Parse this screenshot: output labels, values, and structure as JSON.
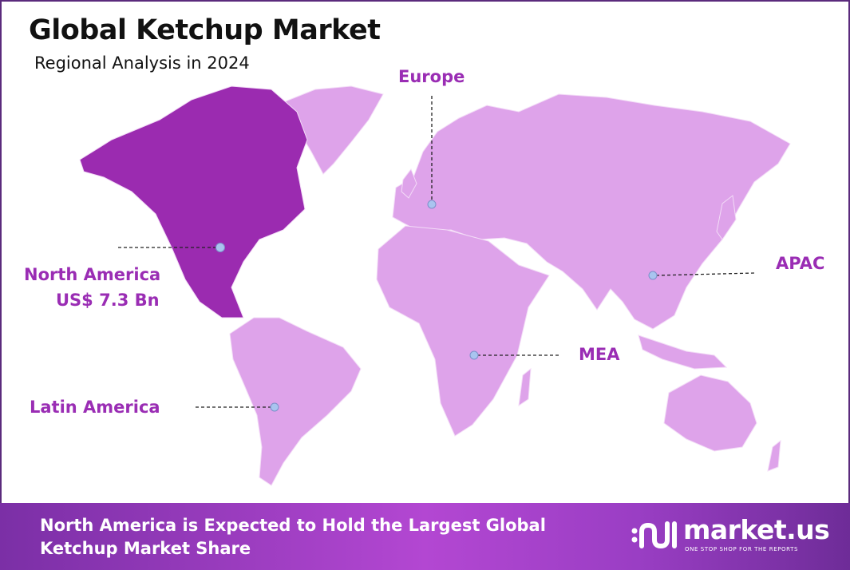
{
  "header": {
    "title": "Global Ketchup Market",
    "subtitle": "Regional Analysis in 2024"
  },
  "map": {
    "highlight_color": "#9b2bb0",
    "base_color": "#dea3ea",
    "marker_color": "#a9c4ef",
    "highlighted_region": "North America",
    "regions": [
      {
        "name": "Europe"
      },
      {
        "name": "North America",
        "value": "US$ 7.3 Bn"
      },
      {
        "name": "APAC"
      },
      {
        "name": "MEA"
      },
      {
        "name": "Latin America"
      }
    ]
  },
  "footer": {
    "line1": "North America is Expected to Hold the Largest Global",
    "line2": "Ketchup Market Share",
    "logo_name": "market.us",
    "logo_tagline": "ONE STOP SHOP FOR THE REPORTS"
  }
}
